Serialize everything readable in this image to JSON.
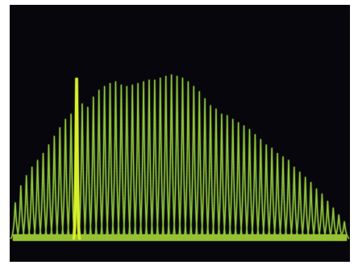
{
  "chart_data": {
    "type": "line",
    "title": "",
    "xlabel": "",
    "ylabel": "",
    "xlim": [
      0,
      61
    ],
    "ylim": [
      0,
      1
    ],
    "grid": false,
    "legend": "none",
    "series": [
      {
        "color": "#8fc63a",
        "x": [
          1,
          2,
          3,
          4,
          5,
          6,
          7,
          8,
          9,
          10,
          11,
          12,
          13,
          14,
          15,
          16,
          17,
          18,
          19,
          20,
          21,
          22,
          23,
          24,
          25,
          26,
          27,
          28,
          29,
          30,
          31,
          32,
          33,
          34,
          35,
          36,
          37,
          38,
          39,
          40,
          41,
          42,
          43,
          44,
          45,
          46,
          47,
          48,
          49,
          50,
          51,
          52,
          53,
          54,
          55,
          56,
          57,
          58,
          59,
          60
        ],
        "y": [
          0.21,
          0.31,
          0.37,
          0.42,
          0.46,
          0.5,
          0.55,
          0.6,
          0.65,
          0.7,
          0.73,
          0.72,
          0.79,
          0.77,
          0.83,
          0.87,
          0.89,
          0.91,
          0.92,
          0.9,
          0.89,
          0.9,
          0.91,
          0.92,
          0.93,
          0.93,
          0.94,
          0.95,
          0.96,
          0.95,
          0.94,
          0.92,
          0.89,
          0.86,
          0.82,
          0.78,
          0.76,
          0.73,
          0.72,
          0.7,
          0.68,
          0.66,
          0.64,
          0.61,
          0.58,
          0.55,
          0.53,
          0.5,
          0.48,
          0.46,
          0.42,
          0.39,
          0.36,
          0.33,
          0.29,
          0.26,
          0.22,
          0.18,
          0.14,
          0.1
        ]
      },
      {
        "color": "#d8f02a",
        "x": [
          12
        ],
        "y": [
          0.94
        ]
      }
    ]
  }
}
